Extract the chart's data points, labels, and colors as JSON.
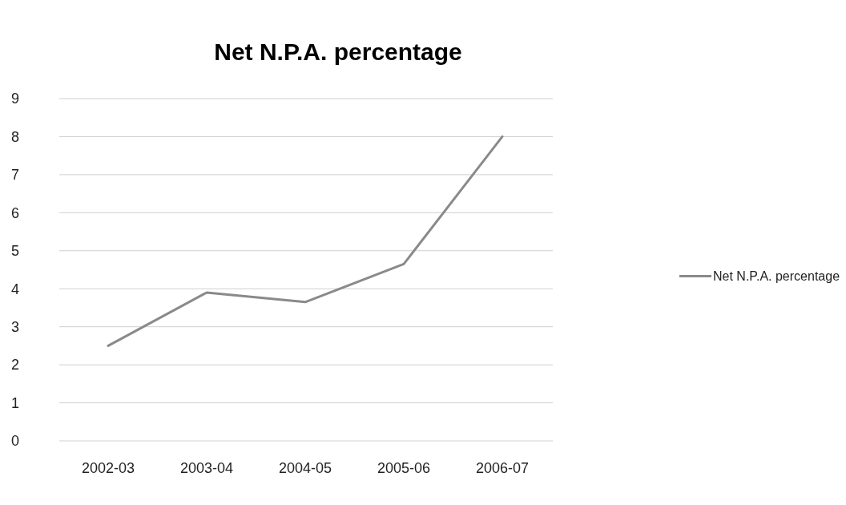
{
  "chart_data": {
    "type": "line",
    "title": "Net N.P.A. percentage",
    "categories": [
      "2002-03",
      "2003-04",
      "2004-05",
      "2005-06",
      "2006-07"
    ],
    "series": [
      {
        "name": "Net N.P.A. percentage",
        "color": "#8a8a8a",
        "values": [
          2.5,
          3.9,
          3.65,
          4.65,
          8.0
        ]
      }
    ],
    "ylim": [
      0,
      9
    ],
    "yticks": [
      0,
      1,
      2,
      3,
      4,
      5,
      6,
      7,
      8,
      9
    ],
    "grid": "y",
    "legend": "right",
    "marker": "none",
    "line_style": "solid"
  }
}
